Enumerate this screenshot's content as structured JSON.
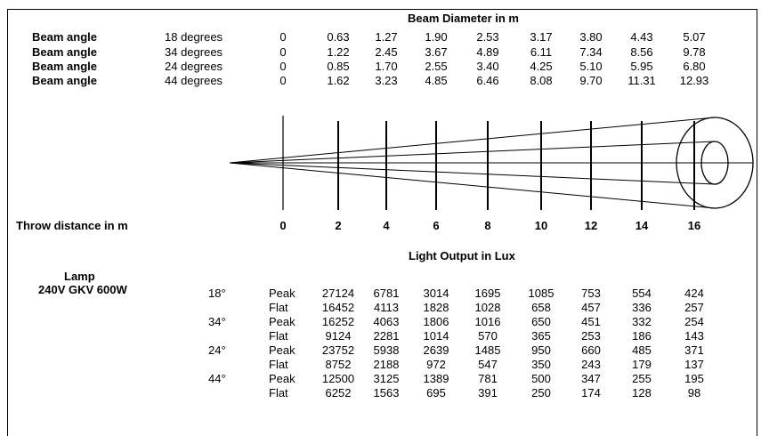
{
  "beam_table": {
    "title": "Beam Diameter in m",
    "rows": [
      {
        "label": "Beam angle",
        "angle": "18 degrees",
        "values": [
          "0",
          "0.63",
          "1.27",
          "1.90",
          "2.53",
          "3.17",
          "3.80",
          "4.43",
          "5.07"
        ]
      },
      {
        "label": "Beam angle",
        "angle": "34 degrees",
        "values": [
          "0",
          "1.22",
          "2.45",
          "3.67",
          "4.89",
          "6.11",
          "7.34",
          "8.56",
          "9.78"
        ]
      },
      {
        "label": "Beam angle",
        "angle": "24 degrees",
        "values": [
          "0",
          "0.85",
          "1.70",
          "2.55",
          "3.40",
          "4.25",
          "5.10",
          "5.95",
          "6.80"
        ]
      },
      {
        "label": "Beam angle",
        "angle": "44 degrees",
        "values": [
          "0",
          "1.62",
          "3.23",
          "4.85",
          "6.46",
          "8.08",
          "9.70",
          "11.31",
          "12.93"
        ]
      }
    ]
  },
  "throw": {
    "label": "Throw distance in m",
    "distances": [
      "0",
      "2",
      "4",
      "6",
      "8",
      "10",
      "12",
      "14",
      "16"
    ]
  },
  "lux_table": {
    "title": "Light Output in Lux",
    "lamp_label": "Lamp",
    "lamp_model": "240V GKV 600W",
    "groups": [
      {
        "angle": "18°",
        "rows": [
          {
            "type": "Peak",
            "values": [
              "27124",
              "6781",
              "3014",
              "1695",
              "1085",
              "753",
              "554",
              "424"
            ]
          },
          {
            "type": "Flat",
            "values": [
              "16452",
              "4113",
              "1828",
              "1028",
              "658",
              "457",
              "336",
              "257"
            ]
          }
        ]
      },
      {
        "angle": "34°",
        "rows": [
          {
            "type": "Peak",
            "values": [
              "16252",
              "4063",
              "1806",
              "1016",
              "650",
              "451",
              "332",
              "254"
            ]
          },
          {
            "type": "Flat",
            "values": [
              "9124",
              "2281",
              "1014",
              "570",
              "365",
              "253",
              "186",
              "143"
            ]
          }
        ]
      },
      {
        "angle": "24°",
        "rows": [
          {
            "type": "Peak",
            "values": [
              "23752",
              "5938",
              "2639",
              "1485",
              "950",
              "660",
              "485",
              "371"
            ]
          },
          {
            "type": "Flat",
            "values": [
              "8752",
              "2188",
              "972",
              "547",
              "350",
              "243",
              "179",
              "137"
            ]
          }
        ]
      },
      {
        "angle": "44°",
        "rows": [
          {
            "type": "Peak",
            "values": [
              "12500",
              "3125",
              "1389",
              "781",
              "500",
              "347",
              "255",
              "195"
            ]
          },
          {
            "type": "Flat",
            "values": [
              "6252",
              "1563",
              "695",
              "391",
              "250",
              "174",
              "128",
              "98"
            ]
          }
        ]
      }
    ]
  }
}
